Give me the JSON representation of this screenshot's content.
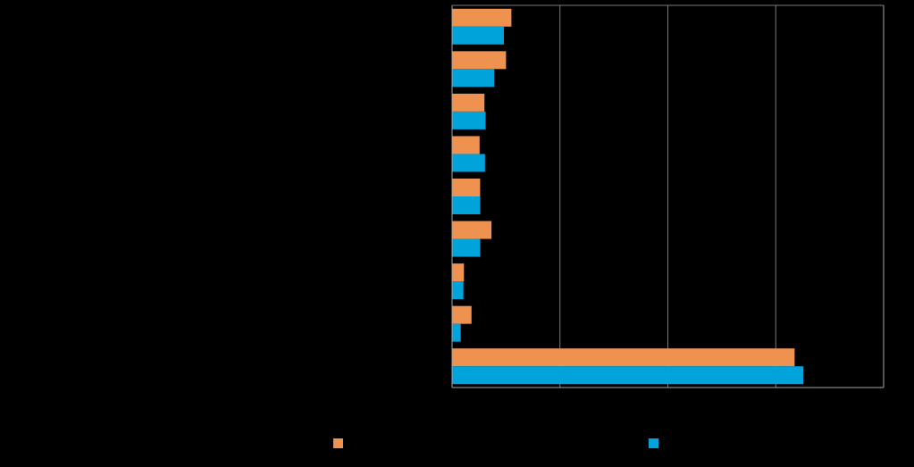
{
  "chart_data": {
    "type": "bar",
    "orientation": "horizontal",
    "categories": [
      "",
      "",
      "",
      "",
      "",
      "",
      "",
      "",
      ""
    ],
    "xlim": [
      0,
      80
    ],
    "x_gridlines": [
      0,
      20,
      40,
      60,
      80
    ],
    "grid": true,
    "series": [
      {
        "name": "",
        "color": "#F0924F",
        "values": [
          11,
          10,
          6,
          5.1,
          5.2,
          7.3,
          2.2,
          3.6,
          63.5
        ]
      },
      {
        "name": "",
        "color": "#00A3DA",
        "values": [
          9.6,
          7.8,
          6.2,
          6.1,
          5.2,
          5.2,
          2.1,
          1.6,
          65.1
        ]
      }
    ],
    "legend": "bottom",
    "title": "",
    "xlabel": "",
    "ylabel": ""
  }
}
